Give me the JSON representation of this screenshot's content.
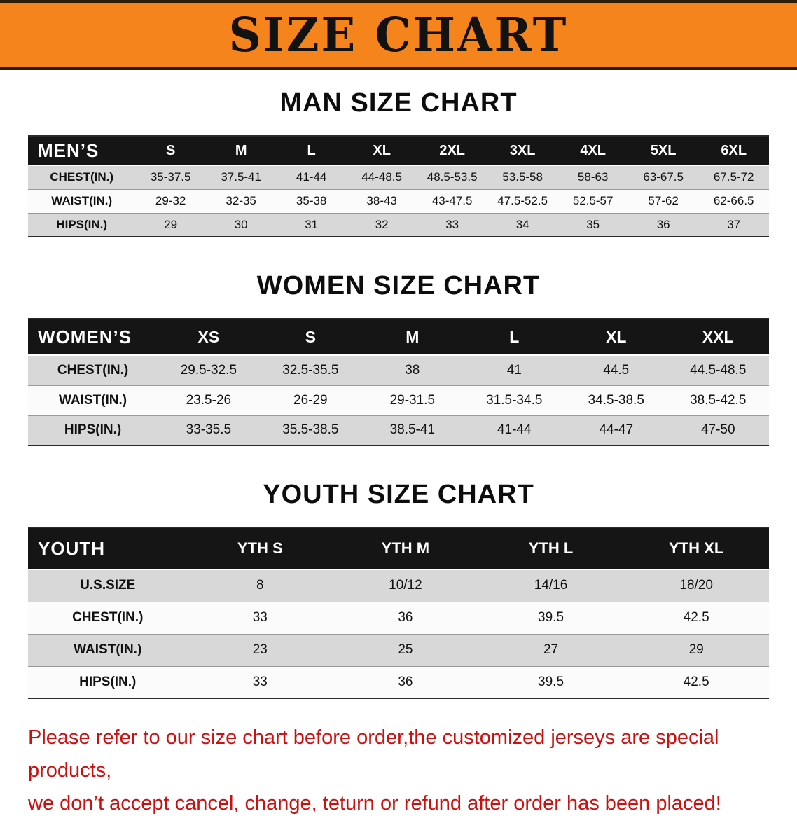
{
  "banner": {
    "title": "SIZE CHART"
  },
  "colors": {
    "banner_bg": "#f6841d",
    "banner_text": "#121212",
    "table_header_bg": "#151515",
    "row_alt_bg": "#d8d8d8",
    "footer_text": "#cc1010"
  },
  "sections": [
    {
      "heading": "MAN SIZE CHART",
      "table": {
        "corner_label": "MEN’S",
        "columns": [
          "S",
          "M",
          "L",
          "XL",
          "2XL",
          "3XL",
          "4XL",
          "5XL",
          "6XL"
        ],
        "rows": [
          {
            "label": "CHEST(IN.)",
            "values": [
              "35-37.5",
              "37.5-41",
              "41-44",
              "44-48.5",
              "48.5-53.5",
              "53.5-58",
              "58-63",
              "63-67.5",
              "67.5-72"
            ]
          },
          {
            "label": "WAIST(IN.)",
            "values": [
              "29-32",
              "32-35",
              "35-38",
              "38-43",
              "43-47.5",
              "47.5-52.5",
              "52.5-57",
              "57-62",
              "62-66.5"
            ]
          },
          {
            "label": "HIPS(IN.)",
            "values": [
              "29",
              "30",
              "31",
              "32",
              "33",
              "34",
              "35",
              "36",
              "37"
            ]
          }
        ]
      }
    },
    {
      "heading": "WOMEN SIZE CHART",
      "table": {
        "corner_label": "WOMEN’S",
        "columns": [
          "XS",
          "S",
          "M",
          "L",
          "XL",
          "XXL"
        ],
        "rows": [
          {
            "label": "CHEST(IN.)",
            "values": [
              "29.5-32.5",
              "32.5-35.5",
              "38",
              "41",
              "44.5",
              "44.5-48.5"
            ]
          },
          {
            "label": "WAIST(IN.)",
            "values": [
              "23.5-26",
              "26-29",
              "29-31.5",
              "31.5-34.5",
              "34.5-38.5",
              "38.5-42.5"
            ]
          },
          {
            "label": "HIPS(IN.)",
            "values": [
              "33-35.5",
              "35.5-38.5",
              "38.5-41",
              "41-44",
              "44-47",
              "47-50"
            ]
          }
        ]
      }
    },
    {
      "heading": "YOUTH SIZE CHART",
      "table": {
        "corner_label": "YOUTH",
        "columns": [
          "YTH S",
          "YTH M",
          "YTH L",
          "YTH XL"
        ],
        "rows": [
          {
            "label": "U.S.SIZE",
            "values": [
              "8",
              "10/12",
              "14/16",
              "18/20"
            ]
          },
          {
            "label": "CHEST(IN.)",
            "values": [
              "33",
              "36",
              "39.5",
              "42.5"
            ]
          },
          {
            "label": "WAIST(IN.)",
            "values": [
              "23",
              "25",
              "27",
              "29"
            ]
          },
          {
            "label": "HIPS(IN.)",
            "values": [
              "33",
              "36",
              "39.5",
              "42.5"
            ]
          }
        ]
      }
    }
  ],
  "footer": {
    "line1": "Please refer to our size chart before order,the customized jerseys are special products,",
    "line2": "we don’t accept cancel, change, teturn or refund after order has been placed!"
  }
}
